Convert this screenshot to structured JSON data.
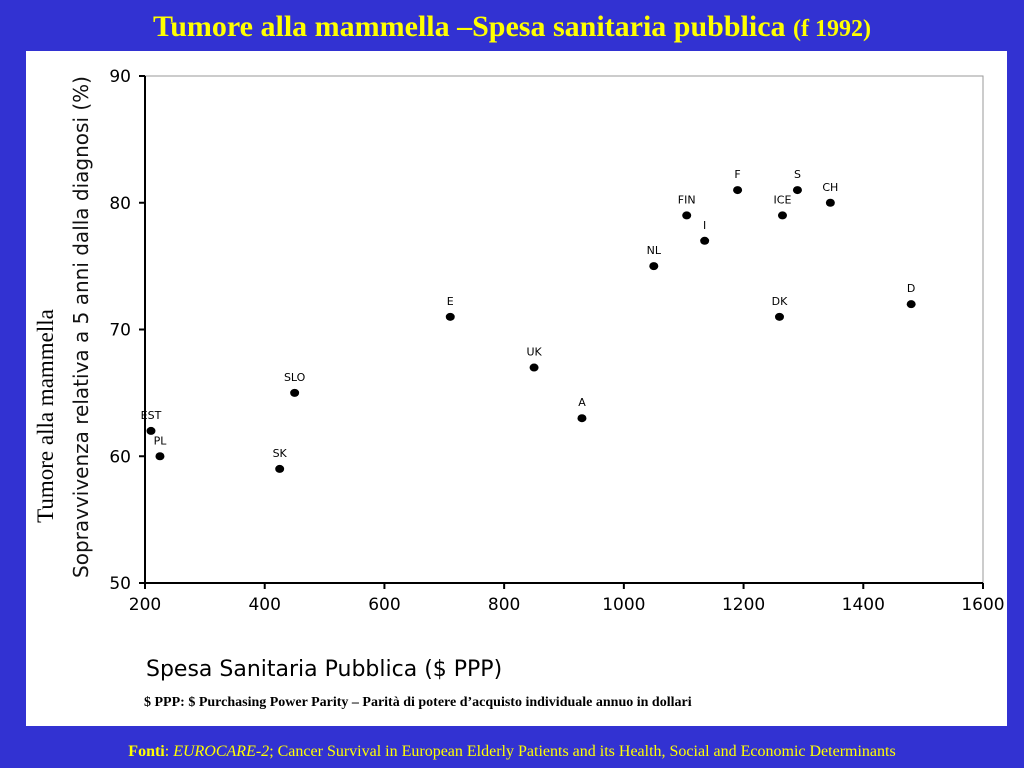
{
  "slide": {
    "title_main": "Tumore alla mammella –Spesa sanitaria pubblica",
    "title_sub": "(f 1992)",
    "ppp_note": "$ PPP: $ Purchasing Power Parity – Parità di potere d’acquisto individuale annuo in dollari",
    "footer": {
      "fonti_label": "Fonti",
      "colon": ": ",
      "source_name": "EUROCARE-2",
      "source_rest": "; Cancer Survival in European Elderly Patients and its Health, Social and Economic Determinants"
    },
    "colors": {
      "background": "#3232d2",
      "title": "#ffff00",
      "panel": "#ffffff"
    }
  },
  "chart_data": {
    "type": "scatter",
    "title": "",
    "xlabel": "Spesa Sanitaria Pubblica ($ PPP)",
    "ylabel_main": "Tumore alla mammella",
    "ylabel_sub": "Sopravvivenza relativa a 5 anni dalla diagnosi (%)",
    "xlim": [
      200,
      1600
    ],
    "ylim": [
      50,
      90
    ],
    "xticks": [
      200,
      400,
      600,
      800,
      1000,
      1200,
      1400,
      1600
    ],
    "yticks": [
      50,
      60,
      70,
      80,
      90
    ],
    "grid": false,
    "points": [
      {
        "label": "EST",
        "x": 210,
        "y": 62
      },
      {
        "label": "PL",
        "x": 225,
        "y": 60
      },
      {
        "label": "SK",
        "x": 425,
        "y": 59
      },
      {
        "label": "SLO",
        "x": 450,
        "y": 65
      },
      {
        "label": "E",
        "x": 710,
        "y": 71
      },
      {
        "label": "UK",
        "x": 850,
        "y": 67
      },
      {
        "label": "A",
        "x": 930,
        "y": 63
      },
      {
        "label": "NL",
        "x": 1050,
        "y": 75
      },
      {
        "label": "FIN",
        "x": 1105,
        "y": 79
      },
      {
        "label": "I",
        "x": 1135,
        "y": 77
      },
      {
        "label": "F",
        "x": 1190,
        "y": 81
      },
      {
        "label": "DK",
        "x": 1260,
        "y": 71
      },
      {
        "label": "ICE",
        "x": 1265,
        "y": 79
      },
      {
        "label": "S",
        "x": 1290,
        "y": 81
      },
      {
        "label": "CH",
        "x": 1345,
        "y": 80
      },
      {
        "label": "D",
        "x": 1480,
        "y": 72
      }
    ]
  }
}
